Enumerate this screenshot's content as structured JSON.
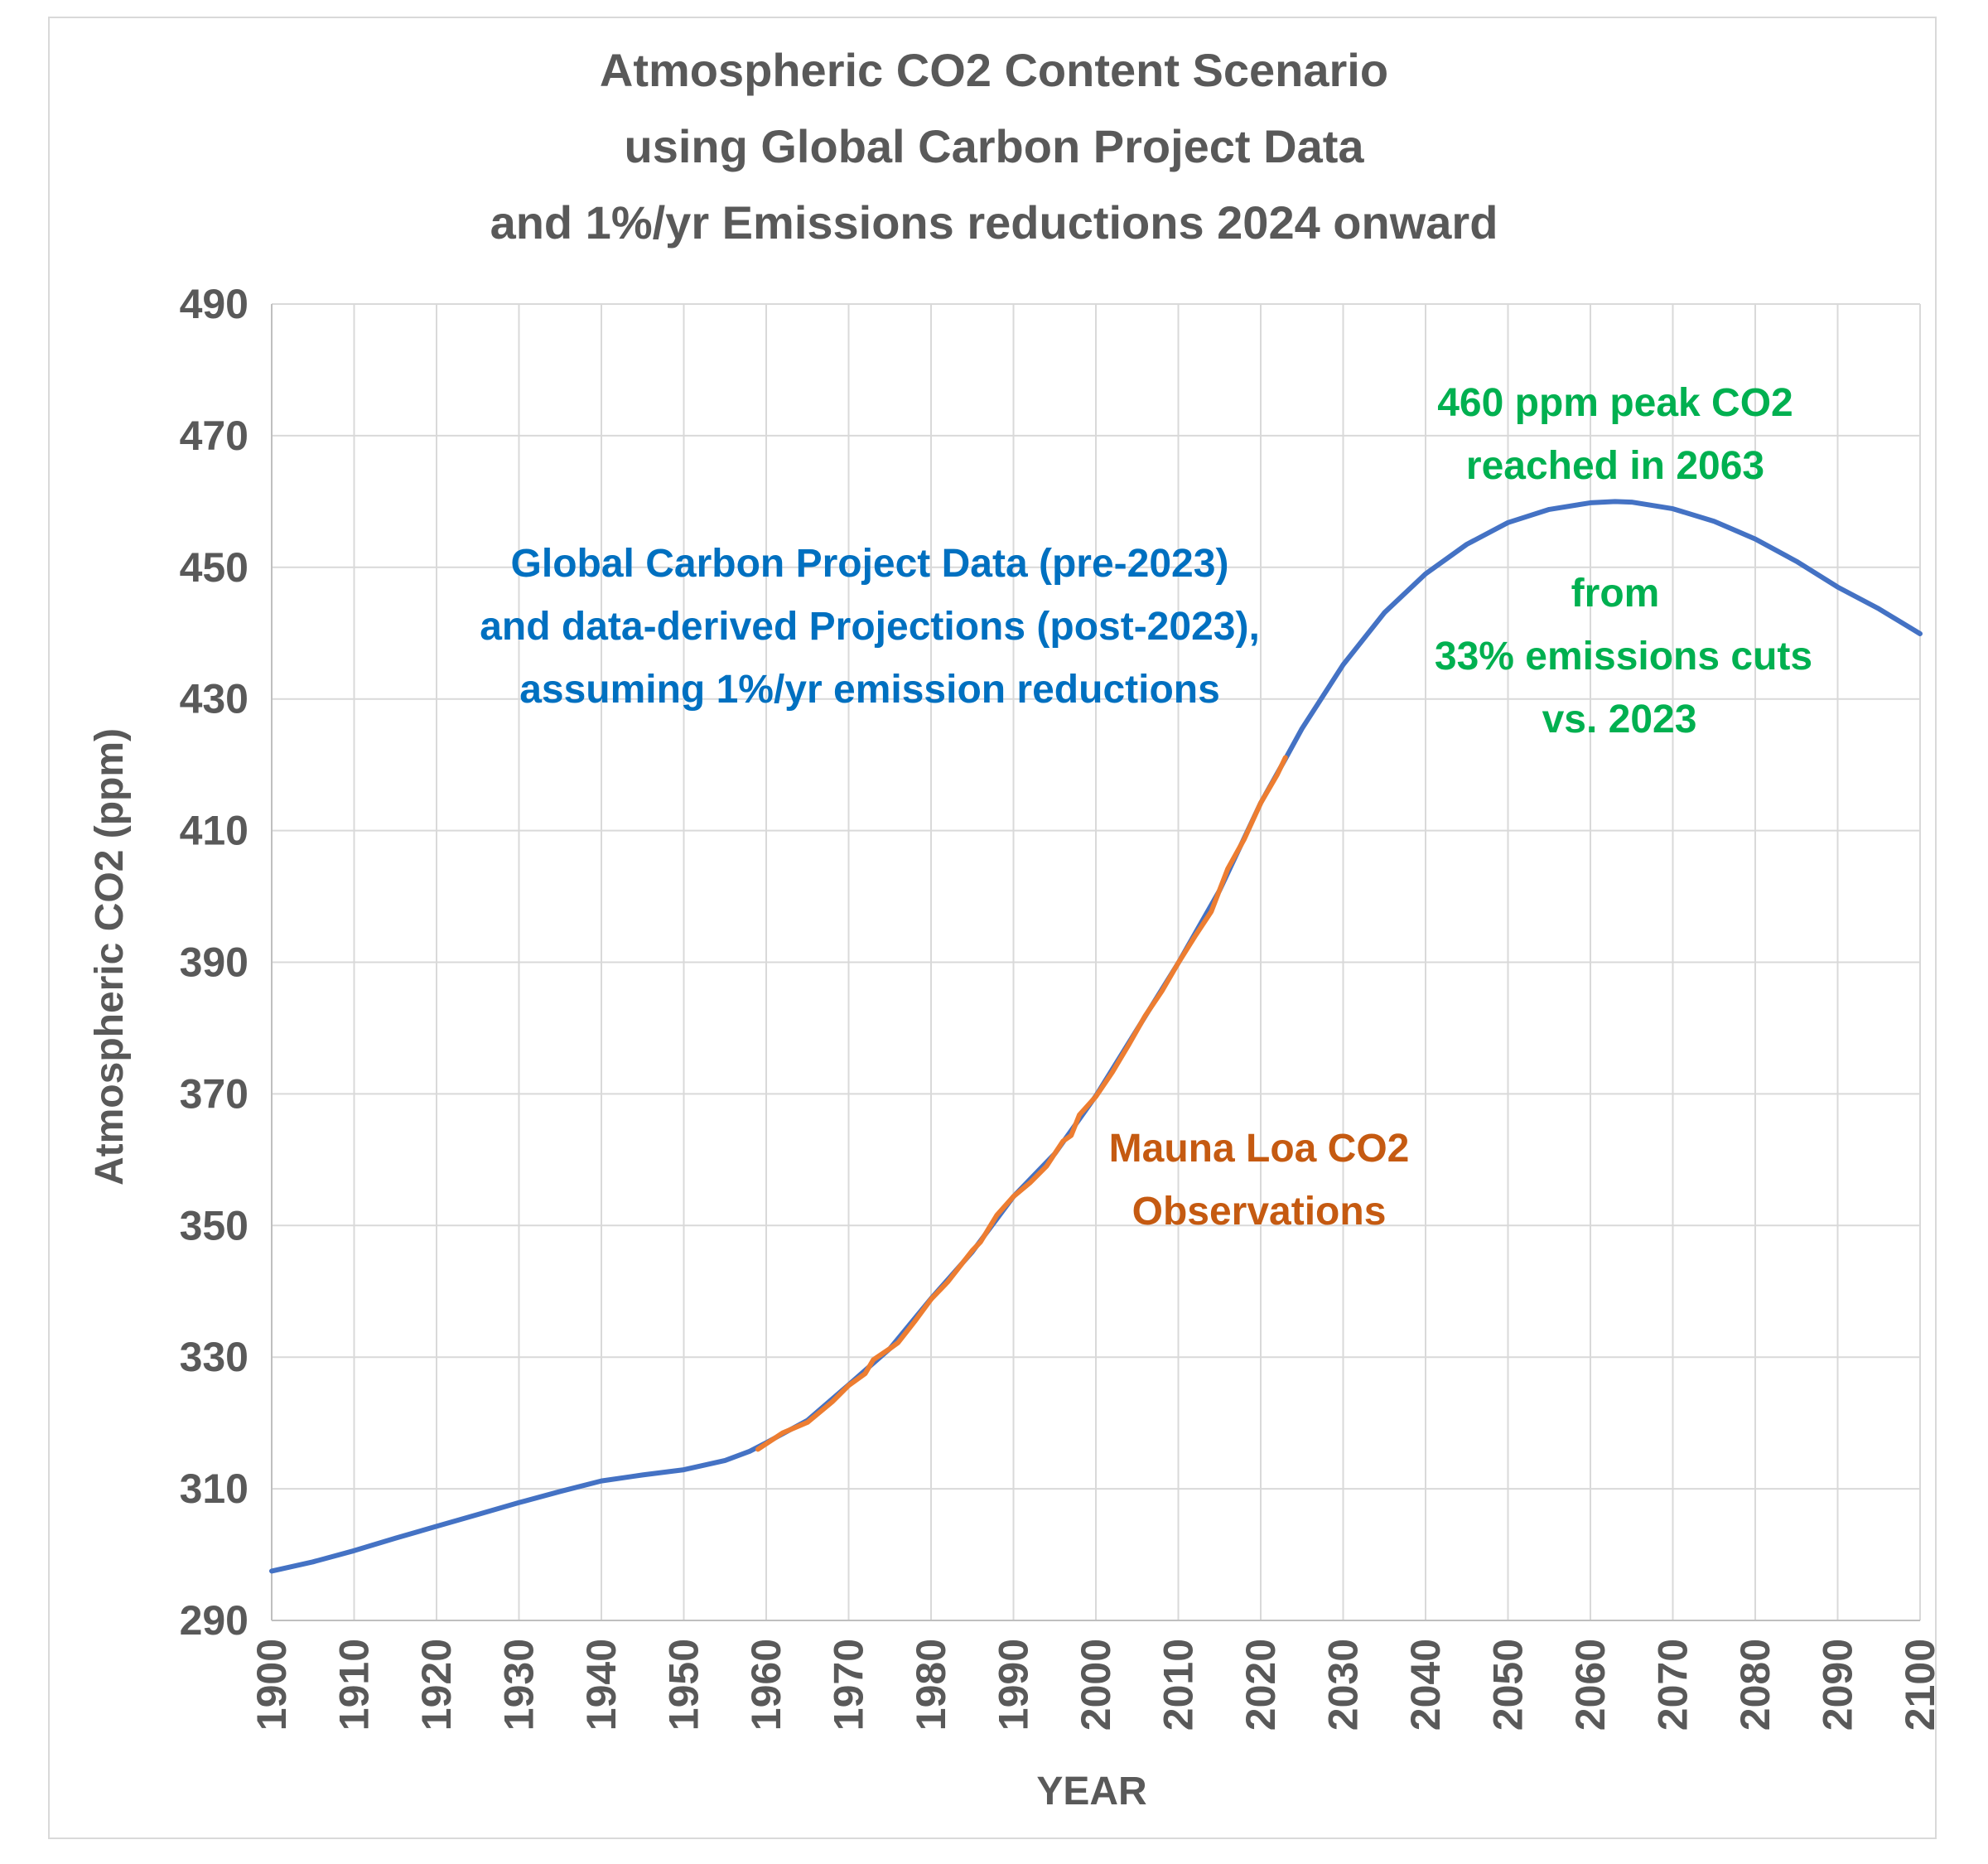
{
  "chart_data": {
    "type": "line",
    "title_lines": [
      "Atmospheric CO2 Content Scenario",
      "using Global Carbon Project Data",
      "and 1%/yr Emissions reductions 2024 onward"
    ],
    "xlabel": "YEAR",
    "ylabel": "Atmospheric CO2 (ppm)",
    "xlim": [
      1900,
      2100
    ],
    "ylim": [
      290,
      490
    ],
    "x_ticks": [
      1900,
      1910,
      1920,
      1930,
      1940,
      1950,
      1960,
      1970,
      1980,
      1990,
      2000,
      2010,
      2020,
      2030,
      2040,
      2050,
      2060,
      2070,
      2080,
      2090,
      2100
    ],
    "y_ticks": [
      290,
      310,
      330,
      350,
      370,
      390,
      410,
      430,
      450,
      470,
      490
    ],
    "grid": true,
    "series": [
      {
        "color": "#4472c4",
        "x": [
          1900,
          1905,
          1910,
          1915,
          1920,
          1925,
          1930,
          1935,
          1940,
          1945,
          1950,
          1955,
          1958,
          1960,
          1965,
          1970,
          1975,
          1980,
          1985,
          1990,
          1995,
          2000,
          2005,
          2010,
          2015,
          2020,
          2023,
          2025,
          2030,
          2035,
          2040,
          2045,
          2050,
          2055,
          2060,
          2063,
          2065,
          2070,
          2075,
          2080,
          2085,
          2090,
          2095,
          2100
        ],
        "values": [
          297.5,
          298.9,
          300.6,
          302.5,
          304.3,
          306.1,
          307.9,
          309.6,
          311.2,
          312.1,
          312.9,
          314.3,
          315.7,
          317.0,
          320.4,
          325.8,
          331.3,
          338.9,
          346.0,
          354.4,
          360.9,
          369.7,
          379.8,
          389.9,
          400.9,
          414.2,
          420.9,
          425.5,
          435.2,
          443.1,
          449.0,
          453.5,
          456.8,
          458.8,
          459.8,
          460.0,
          459.9,
          458.9,
          457.0,
          454.3,
          450.9,
          447.0,
          443.7,
          439.9
        ]
      },
      {
        "color": "#ed7d31",
        "x": [
          1959,
          1962,
          1965,
          1968,
          1970,
          1972,
          1973,
          1975,
          1976,
          1978,
          1980,
          1982,
          1985,
          1986,
          1988,
          1990,
          1992,
          1994,
          1996,
          1997,
          1998,
          2000,
          2002,
          2004,
          2006,
          2008,
          2010,
          2012,
          2014,
          2016,
          2018,
          2020,
          2022,
          2023
        ],
        "values": [
          316.0,
          318.5,
          320.1,
          323.2,
          325.7,
          327.5,
          329.6,
          331.3,
          332.2,
          335.4,
          338.8,
          341.4,
          346.2,
          347.5,
          351.6,
          354.4,
          356.5,
          359.0,
          362.8,
          363.7,
          366.8,
          369.6,
          373.3,
          377.5,
          381.9,
          385.6,
          389.9,
          393.9,
          397.7,
          404.2,
          408.7,
          414.2,
          418.5,
          421.1
        ]
      }
    ],
    "annotations": {
      "gcp": {
        "lines": [
          "Global Carbon Project Data (pre-2023)",
          "and data-derived Projections (post-2023),",
          "assuming 1%/yr emission reductions"
        ],
        "color": "#0070c0"
      },
      "peak": {
        "lines": [
          "460 ppm peak CO2",
          "reached in 2063"
        ],
        "color": "#00b050"
      },
      "cuts": {
        "lines": [
          "from",
          "33% emissions cuts",
          "vs. 2023"
        ],
        "color": "#00b050"
      },
      "mauna": {
        "lines": [
          "Mauna Loa CO2",
          "Observations"
        ],
        "color": "#c55a11"
      }
    }
  }
}
